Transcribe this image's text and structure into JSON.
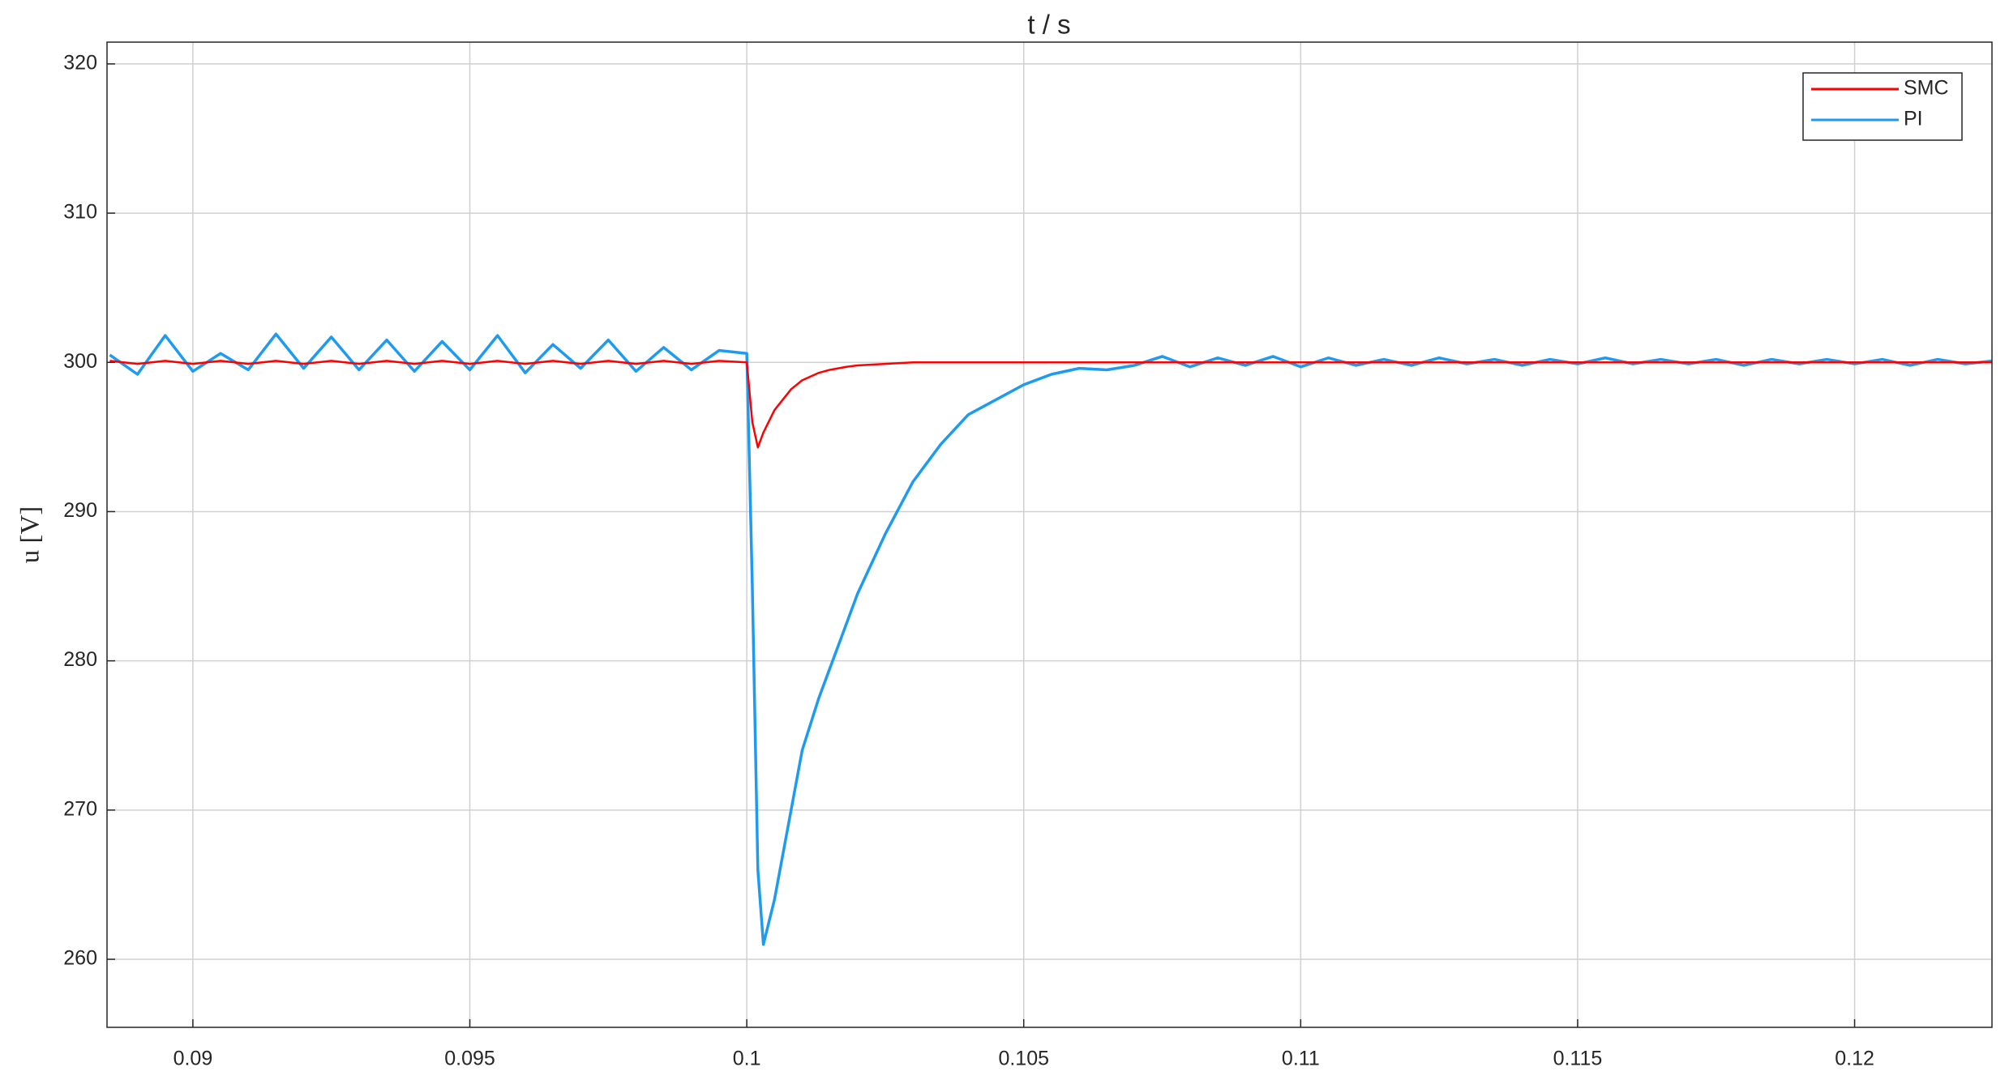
{
  "chart_data": {
    "type": "line",
    "title": "t / s",
    "y_label": "u [V]",
    "x": [
      0.0885,
      0.089,
      0.0895,
      0.09,
      0.0905,
      0.091,
      0.0915,
      0.092,
      0.0925,
      0.093,
      0.0935,
      0.094,
      0.0945,
      0.095,
      0.0955,
      0.096,
      0.0965,
      0.097,
      0.0975,
      0.098,
      0.0985,
      0.099,
      0.0995,
      0.1,
      0.1001,
      0.1002,
      0.1003,
      0.1005,
      0.1008,
      0.101,
      0.1013,
      0.1015,
      0.1018,
      0.102,
      0.1025,
      0.103,
      0.1035,
      0.104,
      0.1045,
      0.105,
      0.1055,
      0.106,
      0.1065,
      0.107,
      0.1075,
      0.108,
      0.1085,
      0.109,
      0.1095,
      0.11,
      0.1105,
      0.111,
      0.1115,
      0.112,
      0.1125,
      0.113,
      0.1135,
      0.114,
      0.1145,
      0.115,
      0.1155,
      0.116,
      0.1165,
      0.117,
      0.1175,
      0.118,
      0.1185,
      0.119,
      0.1195,
      0.12,
      0.1205,
      0.121,
      0.1215,
      0.122,
      0.1225
    ],
    "series": [
      {
        "name": "SMC",
        "color": "#ff0000",
        "values": [
          300.1,
          299.9,
          300.1,
          299.9,
          300.1,
          299.9,
          300.1,
          299.9,
          300.1,
          299.9,
          300.1,
          299.9,
          300.1,
          299.9,
          300.1,
          299.9,
          300.1,
          299.9,
          300.1,
          299.9,
          300.1,
          299.9,
          300.1,
          300,
          296,
          294.3,
          295.3,
          296.8,
          298.2,
          298.8,
          299.3,
          299.5,
          299.7,
          299.8,
          299.9,
          300,
          300,
          300,
          300,
          300,
          300,
          300,
          300,
          300,
          300,
          300,
          300,
          300,
          300,
          300,
          300,
          300,
          300,
          300,
          300,
          300,
          300,
          300,
          300,
          300,
          300,
          300,
          300,
          300,
          300,
          300,
          300,
          300,
          300,
          300,
          300,
          300,
          300,
          300,
          300
        ]
      },
      {
        "name": "PI",
        "color": "#1e9bf0",
        "values": [
          300.5,
          299.2,
          301.8,
          299.4,
          300.6,
          299.5,
          301.9,
          299.6,
          301.7,
          299.5,
          301.5,
          299.4,
          301.4,
          299.5,
          301.8,
          299.3,
          301.2,
          299.6,
          301.5,
          299.4,
          301.0,
          299.5,
          300.8,
          300.6,
          285,
          266,
          261,
          264,
          270,
          274,
          277.5,
          279.5,
          282.5,
          284.5,
          288.5,
          292,
          294.5,
          296.5,
          297.5,
          298.5,
          299.2,
          299.6,
          299.5,
          299.8,
          300.4,
          299.7,
          300.3,
          299.8,
          300.4,
          299.7,
          300.3,
          299.8,
          300.2,
          299.8,
          300.3,
          299.9,
          300.2,
          299.8,
          300.2,
          299.9,
          300.3,
          299.9,
          300.2,
          299.9,
          300.2,
          299.8,
          300.2,
          299.9,
          300.2,
          299.9,
          300.2,
          299.8,
          300.2,
          299.9,
          300.1
        ]
      }
    ],
    "xlim": [
      0.08845,
      0.12248
    ],
    "ylim": [
      255.44,
      321.46
    ],
    "xticks": [
      0.09,
      0.095,
      0.1,
      0.105,
      0.11,
      0.115,
      0.12
    ],
    "yticks": [
      260,
      270,
      280,
      290,
      300,
      310,
      320
    ],
    "grid": true,
    "legend": "upper right"
  }
}
